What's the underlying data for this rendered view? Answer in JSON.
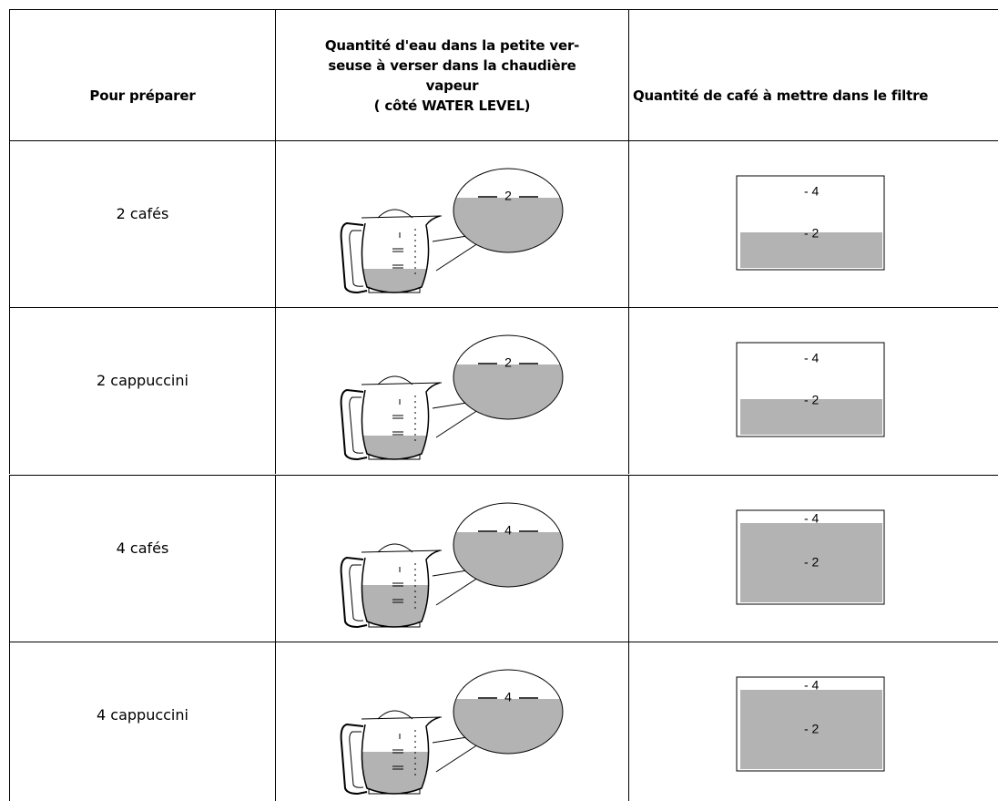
{
  "header": {
    "col1": "Pour préparer",
    "col2": [
      "Quantité d'eau dans la petite ver-",
      "seuse à verser dans la chaudière",
      "vapeur",
      "( côté  WATER LEVEL)"
    ],
    "col3": "Quantité de café à mettre dans le filtre"
  },
  "rows": [
    {
      "label": "2 cafés",
      "carafe_level": "2",
      "filter_marks": [
        "- 4",
        "- 2"
      ]
    },
    {
      "label": "2 cappuccini",
      "carafe_level": "2",
      "filter_marks": [
        "- 4",
        "- 2"
      ]
    },
    {
      "label": "4 cafés",
      "carafe_level": "4",
      "filter_marks": [
        "- 4",
        "- 2"
      ]
    },
    {
      "label": "4 cappuccini",
      "carafe_level": "4",
      "filter_marks": [
        "- 4",
        "- 2"
      ]
    }
  ]
}
